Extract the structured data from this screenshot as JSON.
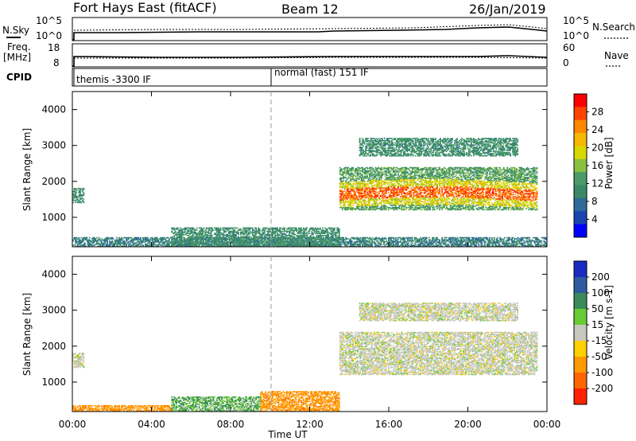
{
  "header": {
    "station": "Fort Hays East (fitACF)",
    "beam": "Beam 12",
    "date": "26/Jan/2019"
  },
  "top_panels": {
    "noise": {
      "left_label": "N.Sky",
      "right_label": "N.Search",
      "left_ticks": [
        "10^5",
        "10^0"
      ],
      "right_ticks": [
        "10^5",
        "10^0"
      ]
    },
    "freq": {
      "left_label_1": "Freq.",
      "left_label_2": "[MHz]",
      "right_label": "Nave",
      "left_ticks": [
        "18",
        "8"
      ],
      "right_ticks": [
        "60",
        "0"
      ]
    },
    "cpid": {
      "label": "CPID",
      "segments": [
        {
          "start_hour": 0.0,
          "text": "themis -3300 IF"
        },
        {
          "start_hour": 10.0,
          "text": "normal (fast) 151 IF"
        }
      ]
    }
  },
  "colorbars": {
    "power": {
      "label": "Power [dB]",
      "ticks": [
        "28",
        "24",
        "20",
        "16",
        "12",
        "8",
        "4"
      ],
      "colors": [
        "#ff0000",
        "#ff4400",
        "#ff8800",
        "#f6b800",
        "#d8d800",
        "#88c040",
        "#4a9a6a",
        "#3a8a6a",
        "#2e6a9a",
        "#1a44b0",
        "#0000ff"
      ]
    },
    "velocity": {
      "label": "Velocity [m s-1]",
      "ticks": [
        "200",
        "100",
        "50",
        "15",
        "-15",
        "-50",
        "-100",
        "-200"
      ],
      "colors": [
        "#1a2cc0",
        "#2e5aa0",
        "#3a8a5a",
        "#66cc33",
        "#c8c8c0",
        "#ffd000",
        "#ff9900",
        "#ff6600",
        "#ff2200"
      ]
    }
  },
  "chart_data": [
    {
      "type": "heatmap",
      "title": "",
      "xlabel": "Time UT",
      "ylabel": "Slant Range [km]",
      "x_ticks": [
        "00:00",
        "04:00",
        "08:00",
        "12:00",
        "16:00",
        "20:00",
        "00:00"
      ],
      "x_range_hours": [
        0,
        24
      ],
      "y_ticks": [
        "4000",
        "3000",
        "2000",
        "1000"
      ],
      "y_range_km": [
        180,
        4500
      ],
      "quantity": "Power [dB]",
      "echo_regions": [
        {
          "t_start": 0.0,
          "t_end": 24.0,
          "r_start": 180,
          "r_end": 450,
          "value_db": 8
        },
        {
          "t_start": 5.0,
          "t_end": 13.5,
          "r_start": 180,
          "r_end": 700,
          "value_db": 10
        },
        {
          "t_start": 0.0,
          "t_end": 0.6,
          "r_start": 1400,
          "r_end": 1800,
          "value_db": 10
        },
        {
          "t_start": 13.5,
          "t_end": 23.5,
          "r_start": 1200,
          "r_end": 2400,
          "value_db": 22
        },
        {
          "t_start": 14.5,
          "t_end": 22.5,
          "r_start": 2700,
          "r_end": 3200,
          "value_db": 10
        }
      ]
    },
    {
      "type": "heatmap",
      "title": "",
      "xlabel": "Time UT",
      "ylabel": "Slant Range [km]",
      "x_ticks": [
        "00:00",
        "04:00",
        "08:00",
        "12:00",
        "16:00",
        "20:00",
        "00:00"
      ],
      "x_range_hours": [
        0,
        24
      ],
      "y_ticks": [
        "4000",
        "3000",
        "2000",
        "1000"
      ],
      "y_range_km": [
        180,
        4500
      ],
      "quantity": "Velocity [m s-1]",
      "echo_regions": [
        {
          "t_start": 0.0,
          "t_end": 5.0,
          "r_start": 180,
          "r_end": 350,
          "value_ms": -60
        },
        {
          "t_start": 5.0,
          "t_end": 9.5,
          "r_start": 180,
          "r_end": 600,
          "value_ms": 30
        },
        {
          "t_start": 9.5,
          "t_end": 13.5,
          "r_start": 180,
          "r_end": 750,
          "value_ms": -60
        },
        {
          "t_start": 0.0,
          "t_end": 0.6,
          "r_start": 1400,
          "r_end": 1800,
          "value_ms": 0
        },
        {
          "t_start": 13.5,
          "t_end": 23.5,
          "r_start": 1200,
          "r_end": 2400,
          "value_ms": 0
        },
        {
          "t_start": 14.5,
          "t_end": 22.5,
          "r_start": 2700,
          "r_end": 3200,
          "value_ms": 0
        }
      ]
    }
  ]
}
